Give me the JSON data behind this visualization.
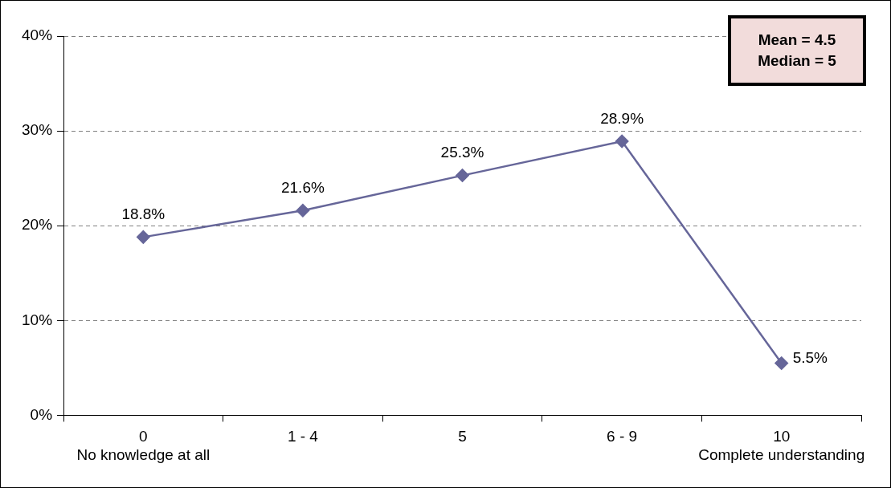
{
  "chart_data": {
    "type": "line",
    "categories": [
      "0\nNo knowledge at all",
      "1 - 4",
      "5",
      "6 - 9",
      "10\nComplete understanding"
    ],
    "series": [
      {
        "color": "#666699",
        "values": [
          18.8,
          21.6,
          25.3,
          28.9,
          5.5
        ],
        "value_labels": [
          "18.8%",
          "21.6%",
          "25.3%",
          "28.9%",
          "5.5%"
        ]
      }
    ],
    "ylim": [
      0,
      40
    ],
    "yticks": [
      {
        "value": 0,
        "label": "0%"
      },
      {
        "value": 10,
        "label": "10%"
      },
      {
        "value": 20,
        "label": "20%"
      },
      {
        "value": 30,
        "label": "30%"
      },
      {
        "value": 40,
        "label": "40%"
      }
    ],
    "grid": "y",
    "legend": false,
    "marker": "diamond",
    "line_style": "solid",
    "annotations": [
      "Mean = 4.5",
      "Median = 5"
    ]
  }
}
